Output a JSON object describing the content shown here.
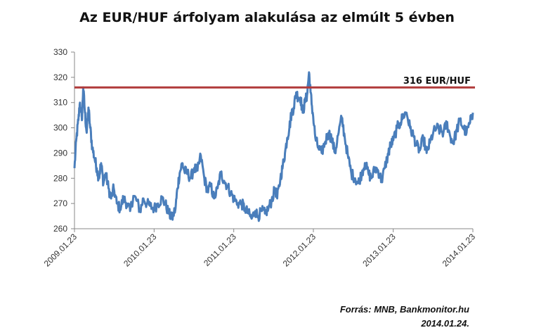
{
  "chart_data": {
    "type": "line",
    "title": "Az EUR/HUF árfolyam alakulása  az elmúlt 5 évben",
    "xlabel": "",
    "ylabel": "",
    "ylim": [
      260,
      330
    ],
    "yticks": [
      260,
      270,
      280,
      290,
      300,
      310,
      320,
      330
    ],
    "xlim": [
      "2009.01.23",
      "2014.01.23"
    ],
    "xticks": [
      "2009.01.23",
      "2010.01.23",
      "2011.01.23",
      "2012.01.23",
      "2013.01.23",
      "2014.01.23"
    ],
    "grid": false,
    "series": [
      {
        "color": "#4a7ebb",
        "points": [
          [
            "2009.01.23",
            284
          ],
          [
            "2009.02.01",
            296
          ],
          [
            "2009.02.10",
            303
          ],
          [
            "2009.02.17",
            310
          ],
          [
            "2009.02.26",
            303
          ],
          [
            "2009.03.04",
            316
          ],
          [
            "2009.03.12",
            306
          ],
          [
            "2009.03.20",
            298
          ],
          [
            "2009.03.28",
            308
          ],
          [
            "2009.04.05",
            300
          ],
          [
            "2009.04.15",
            292
          ],
          [
            "2009.04.25",
            288
          ],
          [
            "2009.05.05",
            284
          ],
          [
            "2009.05.15",
            280
          ],
          [
            "2009.05.25",
            286
          ],
          [
            "2009.06.05",
            278
          ],
          [
            "2009.06.15",
            282
          ],
          [
            "2009.06.28",
            276
          ],
          [
            "2009.07.10",
            272
          ],
          [
            "2009.07.22",
            276
          ],
          [
            "2009.08.05",
            270
          ],
          [
            "2009.08.20",
            268
          ],
          [
            "2009.09.05",
            272
          ],
          [
            "2009.09.20",
            270
          ],
          [
            "2009.10.05",
            267
          ],
          [
            "2009.10.20",
            273
          ],
          [
            "2009.11.05",
            271
          ],
          [
            "2009.11.20",
            267
          ],
          [
            "2009.12.05",
            272
          ],
          [
            "2009.12.20",
            270
          ],
          [
            "2010.01.05",
            269
          ],
          [
            "2010.01.23",
            268
          ],
          [
            "2010.02.10",
            270
          ],
          [
            "2010.02.28",
            272
          ],
          [
            "2010.03.15",
            270
          ],
          [
            "2010.04.01",
            266
          ],
          [
            "2010.04.15",
            264
          ],
          [
            "2010.05.01",
            268
          ],
          [
            "2010.05.10",
            276
          ],
          [
            "2010.05.20",
            282
          ],
          [
            "2010.06.01",
            286
          ],
          [
            "2010.06.10",
            283
          ],
          [
            "2010.06.25",
            282
          ],
          [
            "2010.07.10",
            280
          ],
          [
            "2010.07.25",
            284
          ],
          [
            "2010.08.10",
            283
          ],
          [
            "2010.08.25",
            289
          ],
          [
            "2010.09.10",
            280
          ],
          [
            "2010.09.25",
            275
          ],
          [
            "2010.10.10",
            277
          ],
          [
            "2010.10.25",
            272
          ],
          [
            "2010.11.10",
            276
          ],
          [
            "2010.11.25",
            282
          ],
          [
            "2010.12.10",
            279
          ],
          [
            "2010.12.25",
            277
          ],
          [
            "2011.01.10",
            274
          ],
          [
            "2011.01.23",
            272
          ],
          [
            "2011.02.10",
            270
          ],
          [
            "2011.02.28",
            270
          ],
          [
            "2011.03.15",
            268
          ],
          [
            "2011.04.01",
            266
          ],
          [
            "2011.04.15",
            264
          ],
          [
            "2011.05.01",
            267
          ],
          [
            "2011.05.15",
            265
          ],
          [
            "2011.06.01",
            267
          ],
          [
            "2011.06.15",
            266
          ],
          [
            "2011.07.01",
            268
          ],
          [
            "2011.07.15",
            271
          ],
          [
            "2011.08.01",
            276
          ],
          [
            "2011.08.10",
            272
          ],
          [
            "2011.08.25",
            280
          ],
          [
            "2011.09.05",
            285
          ],
          [
            "2011.09.15",
            290
          ],
          [
            "2011.09.25",
            296
          ],
          [
            "2011.10.05",
            300
          ],
          [
            "2011.10.15",
            306
          ],
          [
            "2011.10.25",
            308
          ],
          [
            "2011.11.05",
            314
          ],
          [
            "2011.11.15",
            312
          ],
          [
            "2011.11.25",
            312
          ],
          [
            "2011.12.05",
            306
          ],
          [
            "2011.12.15",
            310
          ],
          [
            "2011.12.25",
            313
          ],
          [
            "2012.01.03",
            322
          ],
          [
            "2012.01.10",
            314
          ],
          [
            "2012.01.20",
            306
          ],
          [
            "2012.02.01",
            296
          ],
          [
            "2012.02.15",
            292
          ],
          [
            "2012.03.01",
            290
          ],
          [
            "2012.03.15",
            294
          ],
          [
            "2012.04.01",
            298
          ],
          [
            "2012.04.15",
            296
          ],
          [
            "2012.05.01",
            290
          ],
          [
            "2012.05.15",
            297
          ],
          [
            "2012.06.01",
            304
          ],
          [
            "2012.06.15",
            296
          ],
          [
            "2012.07.01",
            288
          ],
          [
            "2012.07.15",
            282
          ],
          [
            "2012.08.01",
            280
          ],
          [
            "2012.08.15",
            278
          ],
          [
            "2012.09.01",
            282
          ],
          [
            "2012.09.15",
            286
          ],
          [
            "2012.10.01",
            282
          ],
          [
            "2012.10.15",
            280
          ],
          [
            "2012.11.01",
            284
          ],
          [
            "2012.11.15",
            283
          ],
          [
            "2012.12.01",
            279
          ],
          [
            "2012.12.15",
            284
          ],
          [
            "2013.01.01",
            290
          ],
          [
            "2013.01.10",
            293
          ],
          [
            "2013.01.23",
            295
          ],
          [
            "2013.02.10",
            300
          ],
          [
            "2013.02.25",
            302
          ],
          [
            "2013.03.10",
            305
          ],
          [
            "2013.03.25",
            306
          ],
          [
            "2013.04.10",
            300
          ],
          [
            "2013.04.25",
            297
          ],
          [
            "2013.05.10",
            293
          ],
          [
            "2013.05.25",
            291
          ],
          [
            "2013.06.10",
            296
          ],
          [
            "2013.06.25",
            290
          ],
          [
            "2013.07.10",
            294
          ],
          [
            "2013.07.25",
            298
          ],
          [
            "2013.08.10",
            300
          ],
          [
            "2013.08.25",
            299
          ],
          [
            "2013.09.10",
            298
          ],
          [
            "2013.09.25",
            302
          ],
          [
            "2013.10.10",
            297
          ],
          [
            "2013.10.25",
            294
          ],
          [
            "2013.11.10",
            299
          ],
          [
            "2013.11.25",
            303
          ],
          [
            "2013.12.10",
            300
          ],
          [
            "2013.12.25",
            298
          ],
          [
            "2014.01.10",
            302
          ],
          [
            "2014.01.23",
            306
          ]
        ]
      }
    ],
    "reference_line": {
      "value": 316,
      "label": "316 EUR/HUF",
      "color": "#b03a3a"
    }
  },
  "source": {
    "line1": "Forrás: MNB, Bankmonitor.hu",
    "line2": "2014.01.24."
  }
}
